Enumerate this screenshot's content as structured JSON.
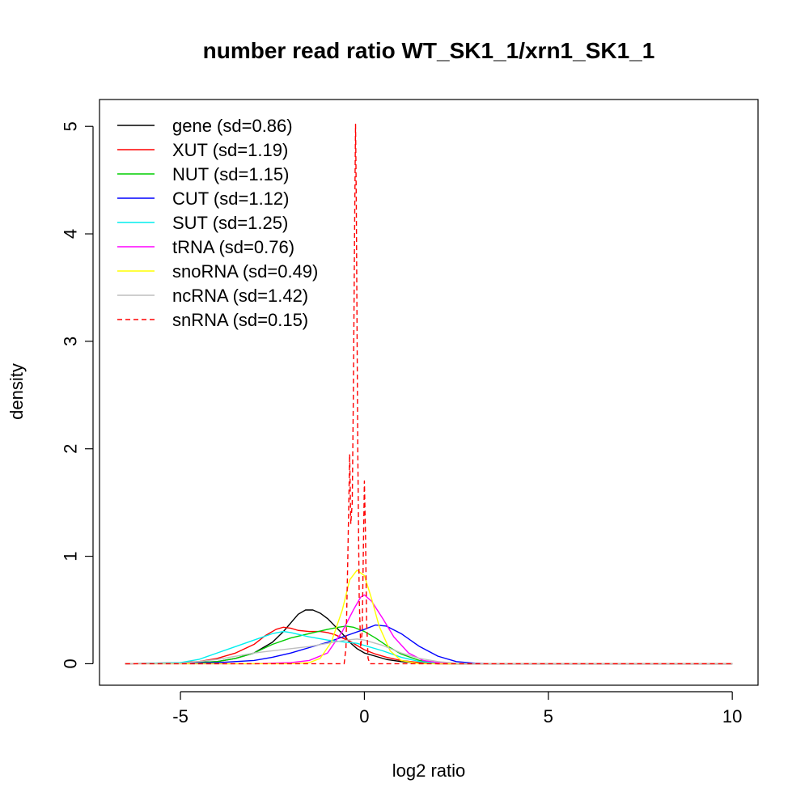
{
  "chart_data": {
    "type": "line",
    "title": "number read ratio WT_SK1_1/xrn1_SK1_1",
    "xlabel": "log2 ratio",
    "ylabel": "density",
    "xlim": [
      -7.2,
      10.7
    ],
    "ylim": [
      -0.2,
      5.25
    ],
    "xticks": [
      -5,
      0,
      5,
      10
    ],
    "xtick_labels": [
      "-5",
      "0",
      "5",
      "10"
    ],
    "yticks": [
      0,
      1,
      2,
      3,
      4,
      5
    ],
    "ytick_labels": [
      "0",
      "1",
      "2",
      "3",
      "4",
      "5"
    ],
    "grid": false,
    "legend_position": "top-left",
    "series": [
      {
        "name": "gene (sd=0.86)",
        "color": "#000000",
        "dash": "solid",
        "points": [
          [
            -6.5,
            0
          ],
          [
            -5,
            0.005
          ],
          [
            -4,
            0.02
          ],
          [
            -3.5,
            0.05
          ],
          [
            -3,
            0.1
          ],
          [
            -2.5,
            0.2
          ],
          [
            -2.2,
            0.3
          ],
          [
            -2,
            0.38
          ],
          [
            -1.8,
            0.46
          ],
          [
            -1.6,
            0.5
          ],
          [
            -1.4,
            0.5
          ],
          [
            -1.2,
            0.47
          ],
          [
            -1,
            0.42
          ],
          [
            -0.8,
            0.35
          ],
          [
            -0.6,
            0.28
          ],
          [
            -0.4,
            0.2
          ],
          [
            -0.2,
            0.14
          ],
          [
            0,
            0.1
          ],
          [
            0.3,
            0.07
          ],
          [
            0.6,
            0.04
          ],
          [
            1,
            0.02
          ],
          [
            1.5,
            0.005
          ],
          [
            2,
            0
          ],
          [
            10,
            0
          ]
        ]
      },
      {
        "name": "XUT (sd=1.19)",
        "color": "#ff0000",
        "dash": "solid",
        "points": [
          [
            -6.5,
            0
          ],
          [
            -5,
            0.01
          ],
          [
            -4.5,
            0.02
          ],
          [
            -4,
            0.05
          ],
          [
            -3.5,
            0.1
          ],
          [
            -3,
            0.18
          ],
          [
            -2.7,
            0.26
          ],
          [
            -2.4,
            0.32
          ],
          [
            -2.2,
            0.34
          ],
          [
            -2,
            0.33
          ],
          [
            -1.8,
            0.31
          ],
          [
            -1.5,
            0.3
          ],
          [
            -1.2,
            0.3
          ],
          [
            -1,
            0.29
          ],
          [
            -0.8,
            0.27
          ],
          [
            -0.6,
            0.24
          ],
          [
            -0.4,
            0.21
          ],
          [
            -0.2,
            0.17
          ],
          [
            0,
            0.13
          ],
          [
            0.3,
            0.09
          ],
          [
            0.6,
            0.06
          ],
          [
            1,
            0.03
          ],
          [
            1.5,
            0.01
          ],
          [
            2,
            0
          ],
          [
            10,
            0
          ]
        ]
      },
      {
        "name": "NUT (sd=1.15)",
        "color": "#00cd00",
        "dash": "solid",
        "points": [
          [
            -6.5,
            0
          ],
          [
            -5,
            0.005
          ],
          [
            -4,
            0.02
          ],
          [
            -3.5,
            0.05
          ],
          [
            -3,
            0.1
          ],
          [
            -2.5,
            0.18
          ],
          [
            -2,
            0.24
          ],
          [
            -1.5,
            0.28
          ],
          [
            -1,
            0.32
          ],
          [
            -0.7,
            0.34
          ],
          [
            -0.5,
            0.35
          ],
          [
            -0.3,
            0.34
          ],
          [
            0,
            0.3
          ],
          [
            0.3,
            0.24
          ],
          [
            0.6,
            0.17
          ],
          [
            1,
            0.09
          ],
          [
            1.5,
            0.03
          ],
          [
            2,
            0.005
          ],
          [
            2.5,
            0
          ],
          [
            10,
            0
          ]
        ]
      },
      {
        "name": "CUT (sd=1.12)",
        "color": "#0000ff",
        "dash": "solid",
        "points": [
          [
            -6.5,
            0
          ],
          [
            -5,
            0.005
          ],
          [
            -4,
            0.01
          ],
          [
            -3,
            0.03
          ],
          [
            -2.5,
            0.06
          ],
          [
            -2,
            0.1
          ],
          [
            -1.5,
            0.15
          ],
          [
            -1,
            0.2
          ],
          [
            -0.5,
            0.26
          ],
          [
            0,
            0.32
          ],
          [
            0.3,
            0.36
          ],
          [
            0.6,
            0.35
          ],
          [
            1,
            0.28
          ],
          [
            1.5,
            0.16
          ],
          [
            2,
            0.07
          ],
          [
            2.5,
            0.02
          ],
          [
            3,
            0.005
          ],
          [
            3.5,
            0
          ],
          [
            10,
            0
          ]
        ]
      },
      {
        "name": "SUT (sd=1.25)",
        "color": "#00eeee",
        "dash": "solid",
        "points": [
          [
            -6.5,
            0
          ],
          [
            -5,
            0.01
          ],
          [
            -4.5,
            0.04
          ],
          [
            -4,
            0.1
          ],
          [
            -3.5,
            0.16
          ],
          [
            -3,
            0.22
          ],
          [
            -2.5,
            0.28
          ],
          [
            -2.2,
            0.3
          ],
          [
            -2,
            0.29
          ],
          [
            -1.5,
            0.25
          ],
          [
            -1,
            0.22
          ],
          [
            -0.5,
            0.2
          ],
          [
            -0.2,
            0.19
          ],
          [
            0,
            0.17
          ],
          [
            0.5,
            0.12
          ],
          [
            1,
            0.06
          ],
          [
            1.5,
            0.02
          ],
          [
            2,
            0.005
          ],
          [
            2.5,
            0
          ],
          [
            10,
            0
          ]
        ]
      },
      {
        "name": "tRNA (sd=0.76)",
        "color": "#ff00ff",
        "dash": "solid",
        "points": [
          [
            -6.5,
            0
          ],
          [
            -3,
            0
          ],
          [
            -2,
            0.01
          ],
          [
            -1.5,
            0.03
          ],
          [
            -1,
            0.1
          ],
          [
            -0.6,
            0.3
          ],
          [
            -0.3,
            0.5
          ],
          [
            -0.1,
            0.62
          ],
          [
            0,
            0.64
          ],
          [
            0.2,
            0.58
          ],
          [
            0.5,
            0.42
          ],
          [
            0.8,
            0.25
          ],
          [
            1.2,
            0.1
          ],
          [
            1.6,
            0.03
          ],
          [
            2,
            0.01
          ],
          [
            2.5,
            0
          ],
          [
            10,
            0
          ]
        ]
      },
      {
        "name": "snoRNA (sd=0.49)",
        "color": "#ffff00",
        "dash": "solid",
        "points": [
          [
            -6.5,
            0
          ],
          [
            -2,
            0
          ],
          [
            -1.5,
            0.01
          ],
          [
            -1.2,
            0.05
          ],
          [
            -0.9,
            0.2
          ],
          [
            -0.6,
            0.5
          ],
          [
            -0.4,
            0.78
          ],
          [
            -0.2,
            0.87
          ],
          [
            0,
            0.82
          ],
          [
            0.2,
            0.6
          ],
          [
            0.4,
            0.35
          ],
          [
            0.7,
            0.12
          ],
          [
            1,
            0.03
          ],
          [
            1.5,
            0
          ],
          [
            10,
            0
          ]
        ]
      },
      {
        "name": "ncRNA (sd=1.42)",
        "color": "#bebebe",
        "dash": "solid",
        "points": [
          [
            -6.5,
            0
          ],
          [
            -5,
            0.005
          ],
          [
            -4.5,
            0.02
          ],
          [
            -4,
            0.04
          ],
          [
            -3.5,
            0.07
          ],
          [
            -3,
            0.1
          ],
          [
            -2.5,
            0.12
          ],
          [
            -2,
            0.14
          ],
          [
            -1.5,
            0.16
          ],
          [
            -1,
            0.19
          ],
          [
            -0.5,
            0.22
          ],
          [
            -0.2,
            0.23
          ],
          [
            0,
            0.22
          ],
          [
            0.5,
            0.17
          ],
          [
            1,
            0.1
          ],
          [
            1.5,
            0.05
          ],
          [
            2,
            0.02
          ],
          [
            2.5,
            0.005
          ],
          [
            3,
            0
          ],
          [
            10,
            0
          ]
        ]
      },
      {
        "name": "snRNA (sd=0.15)",
        "color": "#ff0000",
        "dash": "dashed",
        "points": [
          [
            -6.5,
            0
          ],
          [
            -0.55,
            0
          ],
          [
            -0.5,
            0.15
          ],
          [
            -0.45,
            1.0
          ],
          [
            -0.4,
            1.95
          ],
          [
            -0.37,
            1.3
          ],
          [
            -0.33,
            1.5
          ],
          [
            -0.3,
            2.5
          ],
          [
            -0.26,
            4.3
          ],
          [
            -0.24,
            5.02
          ],
          [
            -0.22,
            4.3
          ],
          [
            -0.18,
            2.0
          ],
          [
            -0.14,
            0.6
          ],
          [
            -0.1,
            0.15
          ],
          [
            -0.06,
            0.3
          ],
          [
            -0.03,
            1.0
          ],
          [
            0,
            1.7
          ],
          [
            0.03,
            1.2
          ],
          [
            0.06,
            0.4
          ],
          [
            0.1,
            0.05
          ],
          [
            0.15,
            0
          ],
          [
            10,
            0
          ]
        ]
      }
    ]
  }
}
